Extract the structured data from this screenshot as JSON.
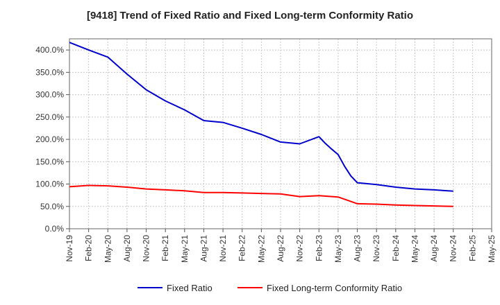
{
  "chart_data": {
    "type": "line",
    "title": "[9418]  Trend of Fixed Ratio and Fixed Long-term Conformity Ratio",
    "xlabel": "",
    "ylabel": "",
    "x_tick_labels": [
      "Nov-19",
      "Feb-20",
      "May-20",
      "Aug-20",
      "Nov-20",
      "Feb-21",
      "May-21",
      "Aug-21",
      "Nov-21",
      "Feb-22",
      "May-22",
      "Aug-22",
      "Nov-22",
      "Feb-23",
      "May-23",
      "Aug-23",
      "Nov-23",
      "Feb-24",
      "May-24",
      "Aug-24",
      "Nov-24",
      "Feb-25",
      "May-25"
    ],
    "y_tick_labels": [
      "0.0%",
      "50.0%",
      "100.0%",
      "150.0%",
      "200.0%",
      "250.0%",
      "300.0%",
      "350.0%",
      "400.0%"
    ],
    "y_ticks": [
      0,
      50,
      100,
      150,
      200,
      250,
      300,
      350,
      400
    ],
    "ylim": [
      0,
      425
    ],
    "xlim": [
      "Nov-19",
      "May-25"
    ],
    "grid": true,
    "legend_position": "bottom",
    "series": [
      {
        "name": "Fixed Ratio",
        "color": "#0000cc",
        "x": [
          "Nov-19",
          "Feb-20",
          "May-20",
          "Aug-20",
          "Nov-20",
          "Feb-21",
          "May-21",
          "Aug-21",
          "Nov-21",
          "Feb-22",
          "May-22",
          "Aug-22",
          "Nov-22",
          "Feb-23",
          "Mar-23",
          "Apr-23",
          "May-23",
          "Jun-23",
          "Jul-23",
          "Aug-23",
          "Nov-23",
          "Feb-24",
          "May-24",
          "Aug-24",
          "Nov-24"
        ],
        "values": [
          417,
          400,
          384,
          346,
          311,
          286,
          266,
          242,
          238,
          225,
          211,
          194,
          190,
          206,
          191,
          178,
          166,
          140,
          118,
          103,
          99,
          93,
          89,
          87,
          84
        ]
      },
      {
        "name": "Fixed Long-term Conformity Ratio",
        "color": "#ff0000",
        "x": [
          "Nov-19",
          "Feb-20",
          "May-20",
          "Aug-20",
          "Nov-20",
          "Feb-21",
          "May-21",
          "Aug-21",
          "Nov-21",
          "Feb-22",
          "May-22",
          "Aug-22",
          "Nov-22",
          "Feb-23",
          "May-23",
          "Aug-23",
          "Nov-23",
          "Feb-24",
          "May-24",
          "Aug-24",
          "Nov-24"
        ],
        "values": [
          94,
          97,
          96,
          93,
          89,
          87,
          85,
          81,
          81,
          80,
          79,
          78,
          72,
          74,
          71,
          56,
          55,
          53,
          52,
          51,
          50
        ]
      }
    ]
  }
}
